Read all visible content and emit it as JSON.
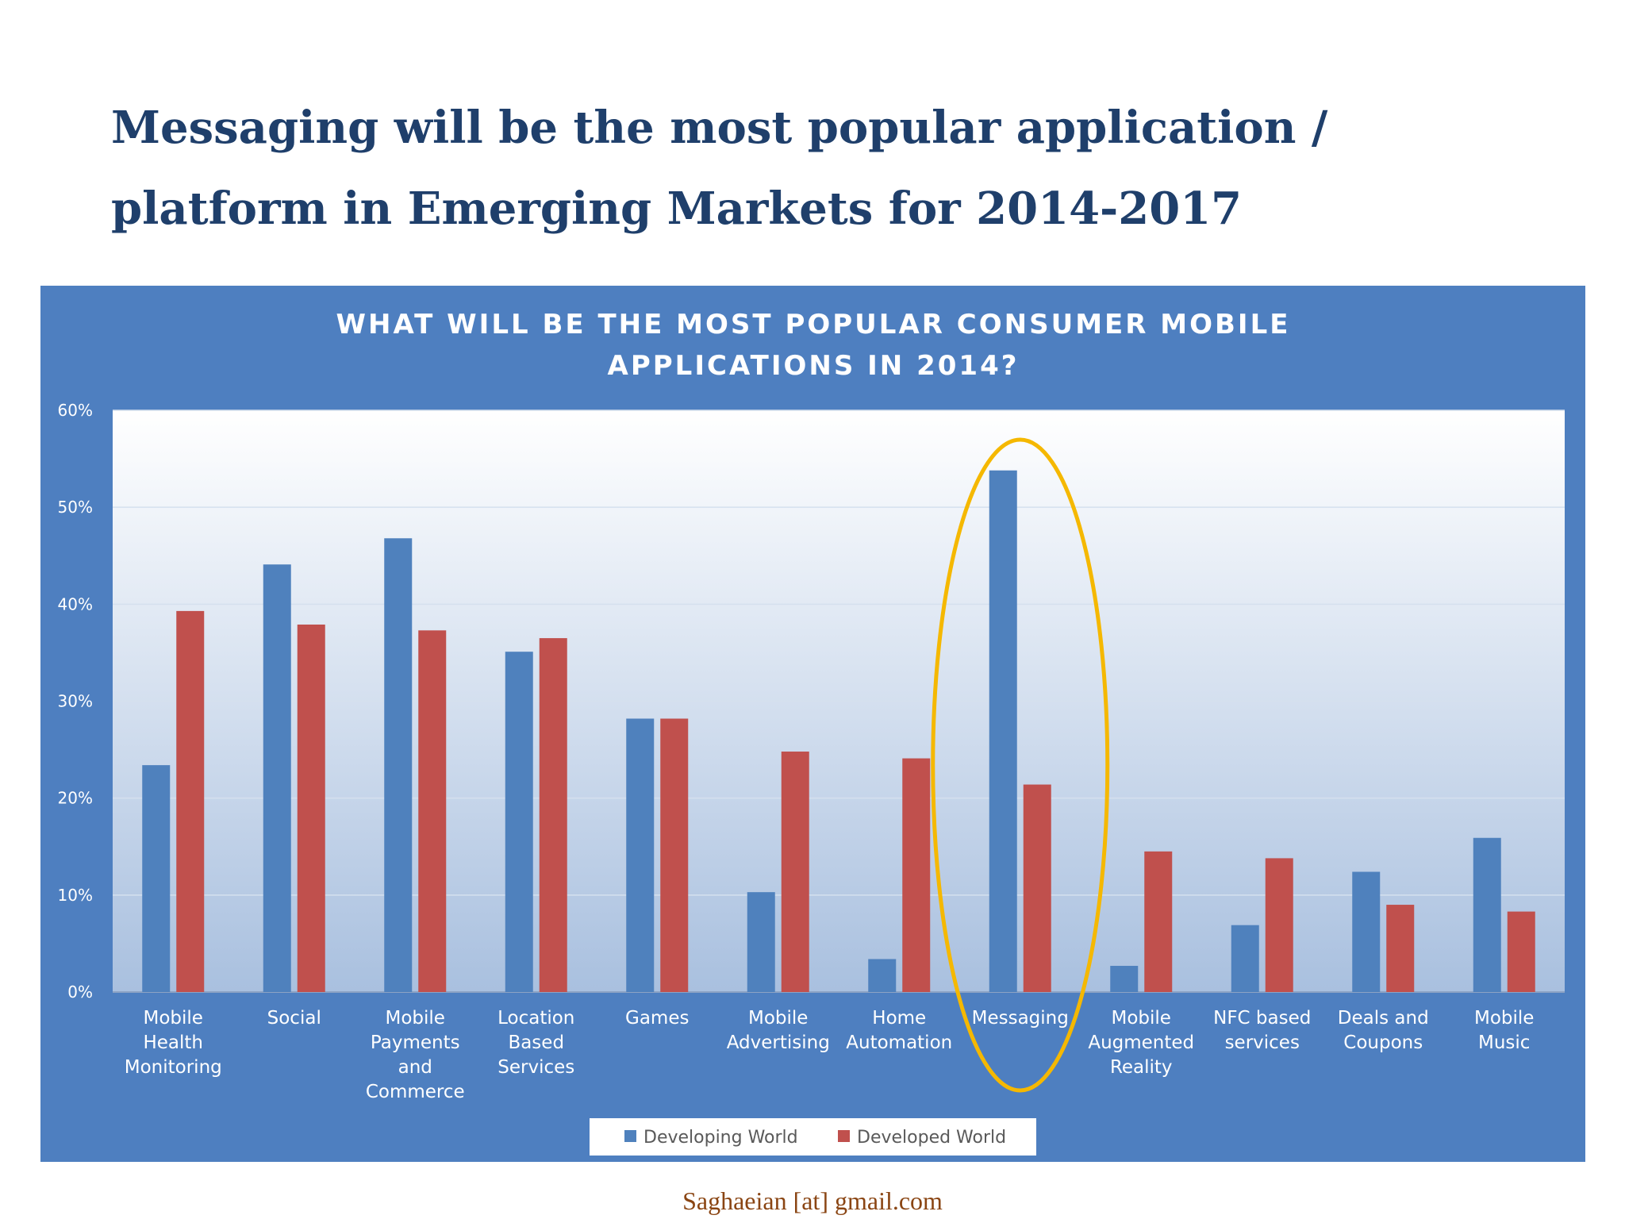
{
  "slide": {
    "title_line1": "Messaging will be the most popular application /",
    "title_line2": "platform in Emerging Markets for 2014-2017",
    "footer": "Saghaeian [at] gmail.com"
  },
  "colors": {
    "frame": "#4e7fc0",
    "developing": "#4f81bd",
    "developed": "#c0504d",
    "highlight": "#f5b800"
  },
  "chart_data": {
    "type": "bar",
    "title": [
      "WHAT WILL BE THE MOST POPULAR CONSUMER MOBILE",
      "APPLICATIONS IN 2014?"
    ],
    "categories": [
      [
        "Mobile",
        "Health",
        "Monitoring"
      ],
      [
        "Social"
      ],
      [
        "Mobile",
        "Payments",
        "and",
        "Commerce"
      ],
      [
        "Location",
        "Based",
        "Services"
      ],
      [
        "Games"
      ],
      [
        "Mobile",
        "Advertising"
      ],
      [
        "Home",
        "Automation"
      ],
      [
        "Messaging"
      ],
      [
        "Mobile",
        "Augmented",
        "Reality"
      ],
      [
        "NFC based",
        "services"
      ],
      [
        "Deals and",
        "Coupons"
      ],
      [
        "Mobile",
        "Music"
      ]
    ],
    "series": [
      {
        "name": "Developing World",
        "values": [
          23.4,
          44.1,
          46.8,
          35.1,
          28.2,
          10.3,
          3.4,
          53.8,
          2.7,
          6.9,
          12.4,
          15.9
        ]
      },
      {
        "name": "Developed World",
        "values": [
          39.3,
          37.9,
          37.3,
          36.5,
          28.2,
          24.8,
          24.1,
          21.4,
          14.5,
          13.8,
          9.0,
          8.3
        ]
      }
    ],
    "ylim": [
      0,
      60
    ],
    "yticks": [
      0,
      10,
      20,
      30,
      40,
      50,
      60
    ],
    "ytick_labels": [
      "0%",
      "10%",
      "20%",
      "30%",
      "40%",
      "50%",
      "60%"
    ],
    "grid": true,
    "legend_position": "bottom",
    "highlighted_category": "Messaging"
  }
}
